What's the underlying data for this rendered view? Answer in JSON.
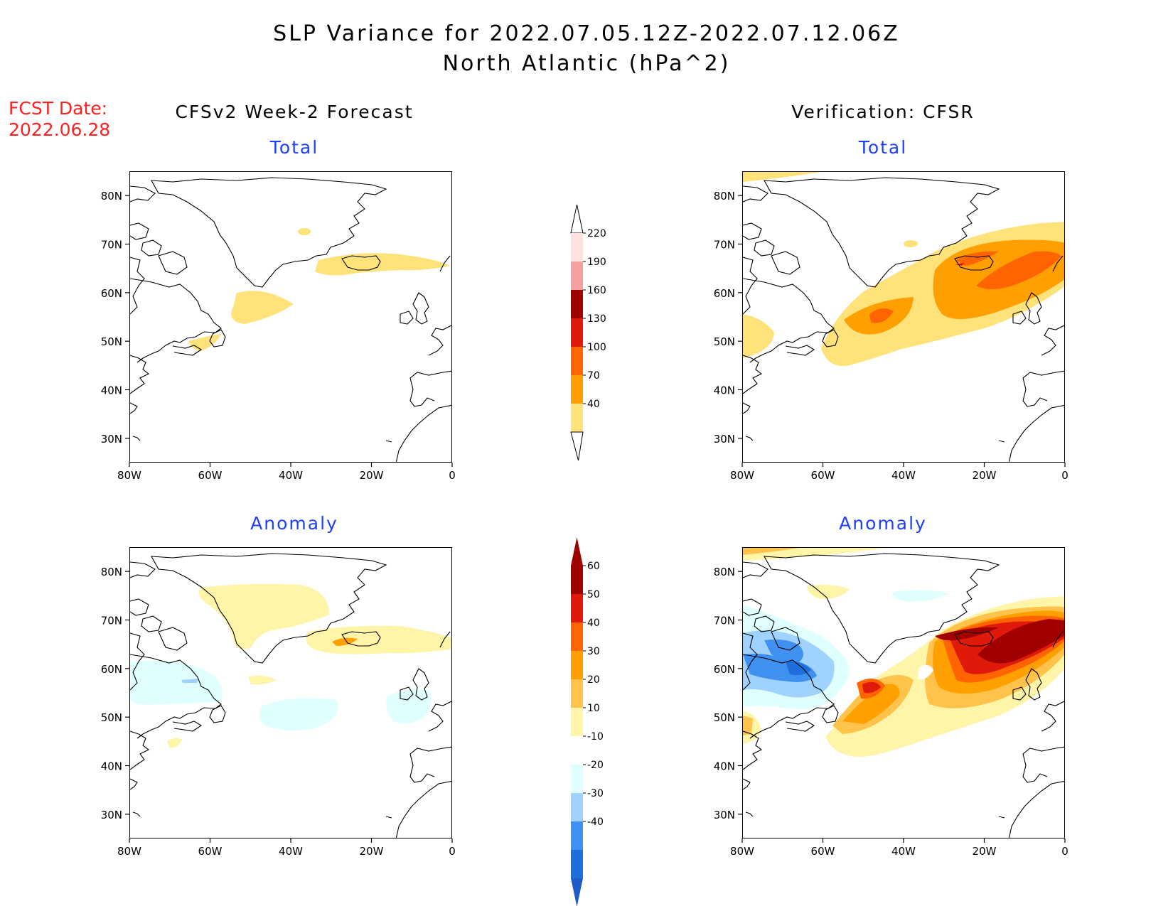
{
  "title": {
    "line1": "SLP Variance for 2022.07.05.12Z-2022.07.12.06Z",
    "line2": "North Atlantic (hPa^2)"
  },
  "fcst_date": {
    "label": "FCST Date:",
    "value": "2022.06.28"
  },
  "columns": {
    "left": "CFSv2 Week-2 Forecast",
    "right": "Verification: CFSR"
  },
  "panel_titles": {
    "total": "Total",
    "anomaly": "Anomaly"
  },
  "axes": {
    "lat_ticks": [
      "80N",
      "70N",
      "60N",
      "50N",
      "40N",
      "30N"
    ],
    "lon_ticks": [
      "80W",
      "60W",
      "40W",
      "20W",
      "0"
    ]
  },
  "colorbar_total": {
    "levels": [
      "220",
      "190",
      "160",
      "130",
      "100",
      "70",
      "40"
    ],
    "colors": [
      "#fde0e0",
      "#f4a0a0",
      "#a00000",
      "#e01a0a",
      "#ff6400",
      "#ffa000",
      "#ffe27a"
    ]
  },
  "colorbar_anomaly": {
    "levels": [
      "60",
      "50",
      "40",
      "30",
      "20",
      "10",
      "-10",
      "-20",
      "-30",
      "-40"
    ],
    "colors_top": [
      "#a00000",
      "#e01a0a",
      "#ff6400",
      "#ffa000",
      "#ffc24a",
      "#fff5a8"
    ],
    "colors_bottom": [
      "#e0ffff",
      "#a0d2ff",
      "#4090ef",
      "#1e6edc",
      "#1e5ac8"
    ]
  }
}
